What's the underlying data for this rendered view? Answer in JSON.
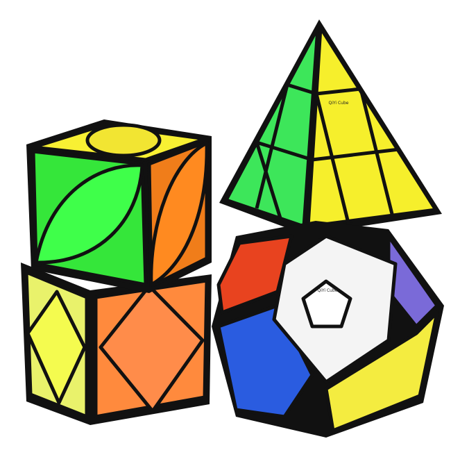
{
  "pyraminx": {
    "logo": "QiYi Cube"
  },
  "megaminx": {
    "logo": "QiYi Cube"
  }
}
